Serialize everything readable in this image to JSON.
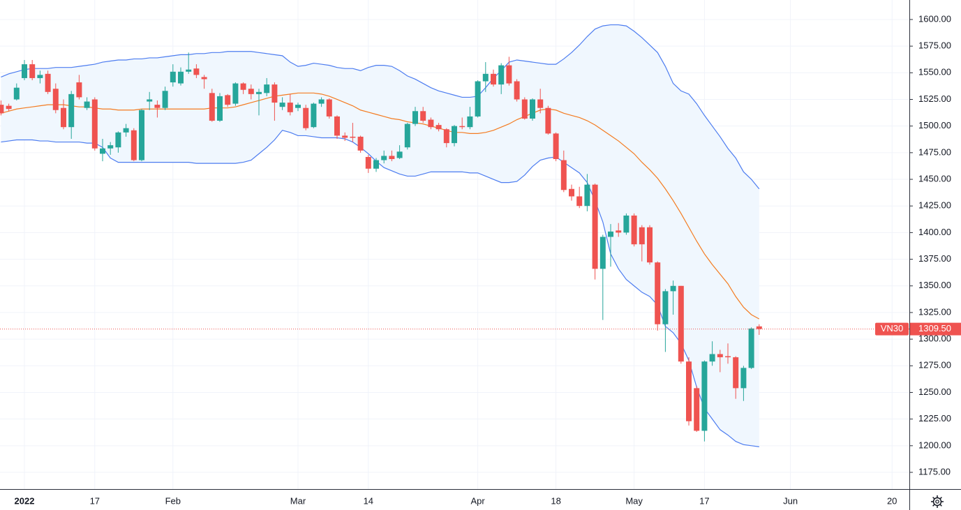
{
  "chart_data": {
    "type": "candlestick",
    "categories": [
      null,
      null,
      null,
      "2022",
      null,
      null,
      null,
      null,
      null,
      null,
      null,
      null,
      "17",
      null,
      null,
      null,
      null,
      null,
      null,
      null,
      null,
      null,
      "Feb",
      null,
      null,
      null,
      null,
      null,
      null,
      null,
      null,
      null,
      null,
      null,
      null,
      null,
      null,
      null,
      "Mar",
      null,
      null,
      null,
      null,
      null,
      null,
      null,
      null,
      "14",
      null,
      null,
      null,
      null,
      null,
      null,
      null,
      null,
      null,
      null,
      null,
      null,
      null,
      "Apr",
      null,
      null,
      null,
      null,
      null,
      null,
      null,
      null,
      null,
      "18",
      null,
      null,
      null,
      null,
      null,
      null,
      null,
      null,
      null,
      "May",
      null,
      null,
      null,
      null,
      null,
      null,
      null,
      null,
      "17",
      null,
      null,
      null,
      null,
      null,
      null,
      null,
      null,
      null,
      null,
      "Jun",
      null,
      null,
      null,
      null,
      null,
      null,
      null,
      null,
      null,
      null,
      null,
      null,
      "20",
      null,
      null
    ],
    "open": [
      1520,
      1519,
      1525,
      1545,
      1558,
      1545,
      1549,
      1535,
      1517,
      1499,
      1541,
      1517,
      1525,
      1474,
      1479,
      1480,
      1494,
      1496,
      1468,
      1523,
      1520,
      1517,
      1541,
      1540,
      1551,
      1554,
      1546,
      1531,
      1505,
      1529,
      1521,
      1540,
      1535,
      1530,
      1531,
      1539,
      1518,
      1522,
      1517,
      1517,
      1499,
      1521,
      1525,
      1509,
      1491,
      1490,
      1490,
      1471,
      1460,
      1468,
      1472,
      1470,
      1480,
      1502,
      1514,
      1506,
      1501,
      1497,
      1484,
      1500,
      1499,
      1509,
      1542,
      1549,
      1539,
      1557,
      1542,
      1525,
      1507,
      1525,
      1517,
      1493,
      1468,
      1441,
      1434,
      1425,
      1445,
      1366,
      1396,
      1402,
      1400,
      1416,
      1405,
      1405,
      1372,
      1314,
      1345,
      1350,
      1279,
      1254,
      1214,
      1279,
      1286,
      1284,
      1283,
      1254,
      1273,
      1312,
      null,
      null,
      null,
      null,
      null,
      null,
      null,
      null,
      null,
      null,
      null,
      null,
      null,
      null,
      null,
      null,
      null,
      null,
      null
    ],
    "high": [
      1524,
      1521,
      1540,
      1562,
      1562,
      1552,
      1552,
      1540,
      1525,
      1533,
      1548,
      1527,
      1527,
      1488,
      1485,
      1495,
      1502,
      1498,
      1516,
      1532,
      1524,
      1537,
      1558,
      1555,
      1569,
      1558,
      1548,
      1535,
      1531,
      1530,
      1541,
      1541,
      1539,
      1535,
      1545,
      1541,
      1527,
      1530,
      1522,
      1520,
      1522,
      1527,
      1526,
      1510,
      1494,
      1503,
      1491,
      1473,
      1470,
      1477,
      1477,
      1482,
      1503,
      1518,
      1518,
      1508,
      1503,
      1498,
      1501,
      1508,
      1518,
      1543,
      1560,
      1553,
      1559,
      1565,
      1544,
      1527,
      1526,
      1535,
      1519,
      1494,
      1477,
      1445,
      1443,
      1455,
      1446,
      1398,
      1408,
      1409,
      1418,
      1418,
      1407,
      1407,
      1373,
      1347,
      1355,
      1350,
      1283,
      1256,
      1280,
      1298,
      1290,
      1296,
      1284,
      1275,
      1311,
      1314,
      null,
      null,
      null,
      null,
      null,
      null,
      null,
      null,
      null,
      null,
      null,
      null,
      null,
      null,
      null,
      null,
      null,
      null,
      null
    ],
    "low": [
      1510,
      1514,
      1524,
      1543,
      1543,
      1540,
      1530,
      1512,
      1497,
      1488,
      1525,
      1515,
      1477,
      1467,
      1473,
      1475,
      1490,
      1467,
      1467,
      1515,
      1508,
      1515,
      1537,
      1538,
      1549,
      1545,
      1535,
      1504,
      1504,
      1518,
      1519,
      1530,
      1525,
      1510,
      1528,
      1505,
      1515,
      1510,
      1514,
      1496,
      1498,
      1518,
      1507,
      1488,
      1486,
      1485,
      1475,
      1456,
      1457,
      1465,
      1467,
      1469,
      1478,
      1500,
      1503,
      1497,
      1495,
      1480,
      1481,
      1497,
      1497,
      1508,
      1532,
      1537,
      1530,
      1538,
      1523,
      1506,
      1505,
      1512,
      1492,
      1467,
      1438,
      1430,
      1423,
      1420,
      1356,
      1318,
      1368,
      1396,
      1398,
      1387,
      1373,
      1370,
      1308,
      1288,
      1323,
      1277,
      1219,
      1213,
      1204,
      1275,
      1269,
      1277,
      1244,
      1242,
      1272,
      1304,
      null,
      null,
      null,
      null,
      null,
      null,
      null,
      null,
      null,
      null,
      null,
      null,
      null,
      null,
      null,
      null,
      null,
      null,
      null
    ],
    "close": [
      1512,
      1516,
      1536,
      1558,
      1545,
      1548,
      1532,
      1515,
      1499,
      1530,
      1527,
      1523,
      1479,
      1479,
      1482,
      1494,
      1498,
      1468,
      1515,
      1525,
      1517,
      1533,
      1551,
      1551,
      1553,
      1548,
      1544,
      1505,
      1528,
      1520,
      1540,
      1534,
      1530,
      1532,
      1539,
      1522,
      1522,
      1513,
      1520,
      1498,
      1521,
      1525,
      1509,
      1491,
      1489,
      1489,
      1477,
      1460,
      1468,
      1472,
      1469,
      1476,
      1502,
      1514,
      1505,
      1499,
      1497,
      1484,
      1500,
      1499,
      1509,
      1542,
      1549,
      1539,
      1557,
      1540,
      1525,
      1507,
      1525,
      1517,
      1493,
      1469,
      1440,
      1434,
      1425,
      1445,
      1366,
      1396,
      1401,
      1400,
      1416,
      1389,
      1389,
      1372,
      1314,
      1345,
      1350,
      1279,
      1223,
      1214,
      1279,
      1286,
      1283,
      1283,
      1254,
      1273,
      1310,
      1309.5,
      null,
      null,
      null,
      null,
      null,
      null,
      null,
      null,
      null,
      null,
      null,
      null,
      null,
      null,
      null,
      null,
      null,
      null,
      null
    ],
    "up_color": "#26a69a",
    "down_color": "#ef5350",
    "bands_fill": "#f0f7fe",
    "overlays": [
      {
        "color": "#4c7cf0",
        "values": [
          1546,
          1549,
          1551,
          1553,
          1554,
          1554,
          1554,
          1555,
          1555,
          1555,
          1556,
          1557,
          1558,
          1560,
          1561,
          1562,
          1562,
          1563,
          1563,
          1564,
          1564,
          1565,
          1566,
          1567,
          1567,
          1568,
          1568,
          1569,
          1569,
          1570,
          1570,
          1570,
          1570,
          1569,
          1568,
          1567,
          1566,
          1560,
          1556,
          1557,
          1559,
          1558,
          1557,
          1555,
          1554,
          1554,
          1552,
          1555,
          1557,
          1557,
          1556,
          1552,
          1547,
          1544,
          1540,
          1536,
          1533,
          1531,
          1529,
          1527,
          1527,
          1528,
          1536,
          1545,
          1552,
          1560,
          1562,
          1561,
          1560,
          1559,
          1558,
          1558,
          1563,
          1569,
          1576,
          1584,
          1591,
          1594,
          1595,
          1595,
          1594,
          1589,
          1583,
          1576,
          1569,
          1556,
          1540,
          1533,
          1530,
          1521,
          1510,
          1500,
          1490,
          1479,
          1470,
          1457,
          1450,
          1441,
          null,
          null,
          null,
          null,
          null,
          null,
          null,
          null,
          null,
          null,
          null,
          null,
          null,
          null,
          null,
          null,
          null,
          null,
          null
        ]
      },
      {
        "color": "#f47b20",
        "values": [
          1512,
          1514,
          1516,
          1517,
          1518,
          1519,
          1520,
          1520,
          1520,
          1519,
          1518,
          1518,
          1517,
          1516,
          1516,
          1515,
          1515,
          1515,
          1516,
          1516,
          1516,
          1516,
          1516,
          1516,
          1516,
          1516,
          1516,
          1517,
          1517,
          1517,
          1518,
          1520,
          1522,
          1524,
          1526,
          1528,
          1529,
          1530,
          1531,
          1531,
          1531,
          1530,
          1528,
          1525,
          1522,
          1519,
          1515,
          1513,
          1511,
          1509,
          1507,
          1506,
          1504,
          1503,
          1502,
          1500,
          1498,
          1496,
          1494,
          1494,
          1493,
          1493,
          1494,
          1496,
          1499,
          1502,
          1506,
          1509,
          1512,
          1515,
          1516,
          1515,
          1512,
          1510,
          1508,
          1505,
          1501,
          1496,
          1491,
          1486,
          1480,
          1474,
          1466,
          1459,
          1451,
          1441,
          1430,
          1418,
          1405,
          1392,
          1380,
          1370,
          1361,
          1352,
          1340,
          1330,
          1323,
          1319,
          null,
          null,
          null,
          null,
          null,
          null,
          null,
          null,
          null,
          null,
          null,
          null,
          null,
          null,
          null,
          null,
          null,
          null,
          null
        ]
      },
      {
        "color": "#4c7cf0",
        "values": [
          1485,
          1486,
          1487,
          1487,
          1487,
          1486,
          1486,
          1485,
          1485,
          1485,
          1485,
          1484,
          1484,
          1480,
          1470,
          1466,
          1466,
          1466,
          1466,
          1466,
          1466,
          1466,
          1466,
          1466,
          1466,
          1465,
          1465,
          1465,
          1465,
          1465,
          1465,
          1466,
          1468,
          1474,
          1480,
          1487,
          1496,
          1494,
          1491,
          1491,
          1490,
          1489,
          1489,
          1489,
          1488,
          1485,
          1480,
          1474,
          1467,
          1461,
          1458,
          1455,
          1453,
          1453,
          1455,
          1457,
          1457,
          1457,
          1457,
          1457,
          1456,
          1456,
          1453,
          1450,
          1447,
          1447,
          1448,
          1454,
          1462,
          1468,
          1470,
          1471,
          1466,
          1461,
          1456,
          1447,
          1430,
          1410,
          1380,
          1366,
          1356,
          1350,
          1344,
          1340,
          1332,
          1312,
          1306,
          1296,
          1280,
          1255,
          1235,
          1225,
          1215,
          1210,
          1204,
          1201,
          1200,
          1199,
          null,
          null,
          null,
          null,
          null,
          null,
          null,
          null,
          null,
          null,
          null,
          null,
          null,
          null,
          null,
          null,
          null,
          null,
          null
        ]
      }
    ],
    "ylim": [
      1159.3,
      1618.3
    ],
    "yticks": [
      {
        "value": 1175,
        "label": "1175.00"
      },
      {
        "value": 1200,
        "label": "1200.00"
      },
      {
        "value": 1225,
        "label": "1225.00"
      },
      {
        "value": 1250,
        "label": "1250.00"
      },
      {
        "value": 1275,
        "label": "1275.00"
      },
      {
        "value": 1300,
        "label": "1300.00"
      },
      {
        "value": 1325,
        "label": "1325.00"
      },
      {
        "value": 1350,
        "label": "1350.00"
      },
      {
        "value": 1375,
        "label": "1375.00"
      },
      {
        "value": 1400,
        "label": "1400.00"
      },
      {
        "value": 1425,
        "label": "1425.00"
      },
      {
        "value": 1450,
        "label": "1450.00"
      },
      {
        "value": 1475,
        "label": "1475.00"
      },
      {
        "value": 1500,
        "label": "1500.00"
      },
      {
        "value": 1525,
        "label": "1525.00"
      },
      {
        "value": 1550,
        "label": "1550.00"
      },
      {
        "value": 1575,
        "label": "1575.00"
      },
      {
        "value": 1600,
        "label": "1600.00"
      }
    ],
    "grid": true,
    "last_price": {
      "symbol": "VN30",
      "value": 1309.5,
      "label": "1309.50",
      "color": "#ef5350"
    }
  }
}
